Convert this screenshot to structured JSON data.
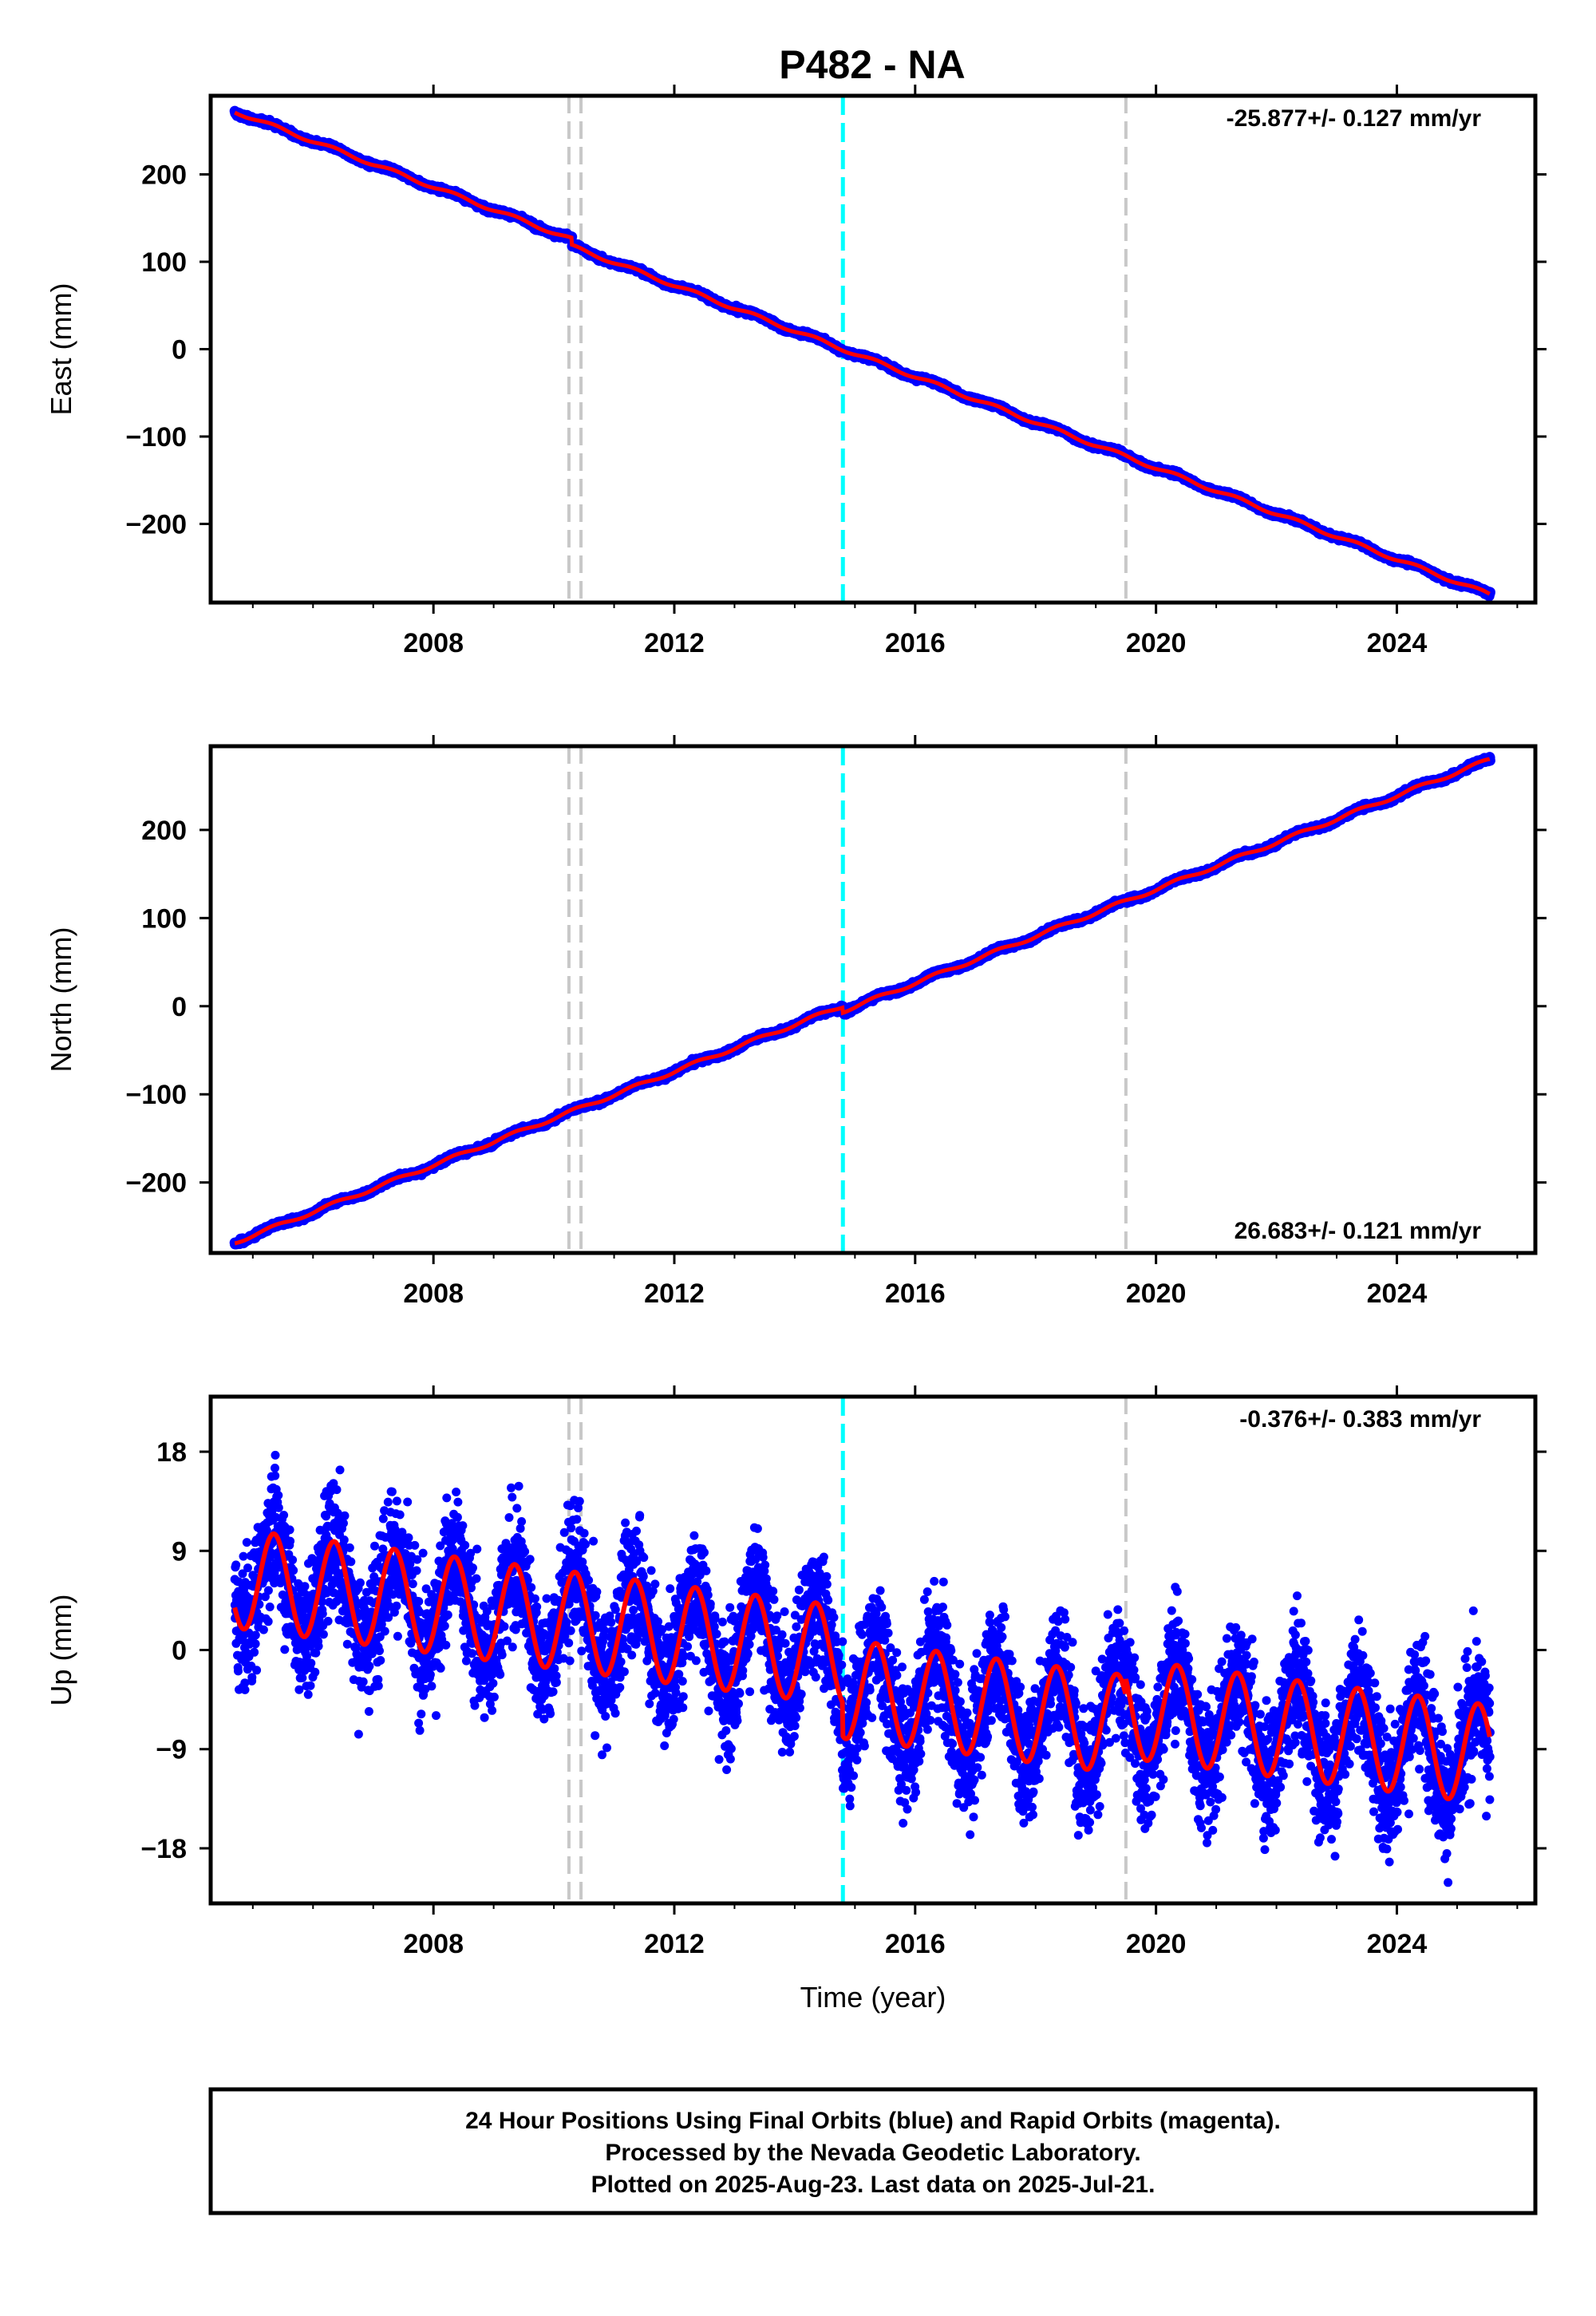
{
  "title": "P482 - NA",
  "colors": {
    "final_orbits": "#0000ff",
    "model_fit": "#ff0000",
    "gray_marker": "#c8c8c8",
    "cyan_marker": "#00ffff"
  },
  "chart_data": [
    {
      "type": "scatter",
      "component": "East",
      "ylabel": "East (mm)",
      "xlim": [
        2004.3,
        2026.3
      ],
      "ylim": [
        -290,
        290
      ],
      "yticks": [
        200,
        100,
        0,
        -100,
        -200
      ],
      "ytick_labels": [
        "200",
        "100",
        "0",
        "−100",
        "−200"
      ],
      "xticks": [
        2008,
        2012,
        2016,
        2020,
        2024
      ],
      "xtick_labels": [
        "2008",
        "2012",
        "2016",
        "2020",
        "2024"
      ],
      "rate": "-25.877+/- 0.127 mm/yr",
      "rate_position": "top-right",
      "start": 2004.7,
      "end": 2025.55,
      "fit_start_value": 272,
      "fit_end_value": -273,
      "seasonal_amplitude": 2,
      "noise": 1.8,
      "steps": [
        {
          "x": 2010.3,
          "size": -8
        }
      ],
      "series": [
        {
          "name": "Final Orbits (blue)",
          "points": "daily"
        },
        {
          "name": "model",
          "kind": "line"
        }
      ]
    },
    {
      "type": "scatter",
      "component": "North",
      "ylabel": "North (mm)",
      "xlim": [
        2004.3,
        2026.3
      ],
      "ylim": [
        -280,
        295
      ],
      "yticks": [
        200,
        100,
        0,
        -100,
        -200
      ],
      "ytick_labels": [
        "200",
        "100",
        "0",
        "−100",
        "−200"
      ],
      "xticks": [
        2008,
        2012,
        2016,
        2020,
        2024
      ],
      "xtick_labels": [
        "2008",
        "2012",
        "2016",
        "2020",
        "2024"
      ],
      "rate": "26.683+/- 0.121 mm/yr",
      "rate_position": "bottom-right",
      "start": 2004.7,
      "end": 2025.55,
      "fit_start_value": -268,
      "fit_end_value": 286,
      "seasonal_amplitude": 2,
      "noise": 1.8,
      "steps": [
        {
          "x": 2014.8,
          "size": -6
        }
      ],
      "series": [
        {
          "name": "Final Orbits (blue)",
          "points": "daily"
        },
        {
          "name": "model",
          "kind": "line"
        }
      ]
    },
    {
      "type": "scatter",
      "component": "Up",
      "ylabel": "Up (mm)",
      "xlabel": "Time (year)",
      "xlim": [
        2004.3,
        2026.3
      ],
      "ylim": [
        -23,
        23
      ],
      "yticks": [
        18,
        9,
        0,
        -9,
        -18
      ],
      "ytick_labels": [
        "18",
        "9",
        "0",
        "−9",
        "−18"
      ],
      "xticks": [
        2008,
        2012,
        2016,
        2020,
        2024
      ],
      "xtick_labels": [
        "2008",
        "2012",
        "2016",
        "2020",
        "2024"
      ],
      "rate": "-0.376+/- 0.383 mm/yr",
      "rate_position": "top-right",
      "start": 2004.7,
      "end": 2025.55,
      "fit_start_value": 6.5,
      "fit_end_value": -8,
      "seasonal_amplitude": 4.5,
      "noise": 4,
      "steps": [
        {
          "x": 2014.8,
          "size": -3
        },
        {
          "x": 2019.5,
          "size": 1.5
        }
      ],
      "series": [
        {
          "name": "Final Orbits (blue)",
          "points": "daily"
        },
        {
          "name": "model",
          "kind": "line"
        }
      ]
    }
  ],
  "markers": {
    "gray": [
      2010.25,
      2010.45,
      2019.5
    ],
    "cyan": [
      2014.8
    ]
  },
  "footer": {
    "line1": "24 Hour Positions Using Final Orbits (blue) and Rapid Orbits (magenta).",
    "line2": "Processed by the Nevada Geodetic Laboratory.",
    "line3": "Plotted on 2025-Aug-23. Last data on 2025-Jul-21."
  }
}
